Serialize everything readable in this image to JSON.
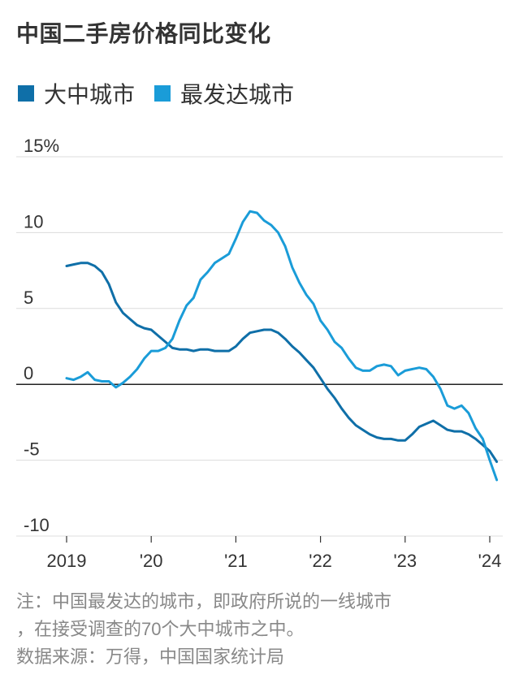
{
  "chart_data": {
    "type": "line",
    "title": "中国二手房价格同比变化",
    "ylim": [
      -10,
      15
    ],
    "y_ticks": [
      15,
      10,
      5,
      0,
      -5,
      -10
    ],
    "y_tick_labels": [
      "15%",
      "10",
      "5",
      "0",
      "-5",
      "-10"
    ],
    "x_ticks": [
      2019,
      2020,
      2021,
      2022,
      2023,
      2024
    ],
    "x_tick_labels": [
      "2019",
      "'20",
      "'21",
      "'22",
      "'23",
      "'24"
    ],
    "grid": true,
    "legend": "top-left",
    "series": [
      {
        "name": "大中城市",
        "color": "#0f6fa8",
        "x": [
          2019.0,
          2019.083,
          2019.167,
          2019.25,
          2019.333,
          2019.417,
          2019.5,
          2019.583,
          2019.667,
          2019.75,
          2019.833,
          2019.917,
          2020.0,
          2020.083,
          2020.167,
          2020.25,
          2020.333,
          2020.417,
          2020.5,
          2020.583,
          2020.667,
          2020.75,
          2020.833,
          2020.917,
          2021.0,
          2021.083,
          2021.167,
          2021.25,
          2021.333,
          2021.417,
          2021.5,
          2021.583,
          2021.667,
          2021.75,
          2021.833,
          2021.917,
          2022.0,
          2022.083,
          2022.167,
          2022.25,
          2022.333,
          2022.417,
          2022.5,
          2022.583,
          2022.667,
          2022.75,
          2022.833,
          2022.917,
          2023.0,
          2023.083,
          2023.167,
          2023.25,
          2023.333,
          2023.417,
          2023.5,
          2023.583,
          2023.667,
          2023.75,
          2023.833,
          2023.917,
          2024.0,
          2024.083
        ],
        "y": [
          7.8,
          7.9,
          8.0,
          8.0,
          7.8,
          7.4,
          6.6,
          5.4,
          4.7,
          4.3,
          3.9,
          3.7,
          3.6,
          3.2,
          2.8,
          2.4,
          2.3,
          2.3,
          2.2,
          2.3,
          2.3,
          2.2,
          2.2,
          2.2,
          2.5,
          3.0,
          3.4,
          3.5,
          3.6,
          3.6,
          3.4,
          3.0,
          2.5,
          2.1,
          1.6,
          1.1,
          0.4,
          -0.3,
          -0.9,
          -1.6,
          -2.2,
          -2.7,
          -3.0,
          -3.3,
          -3.5,
          -3.6,
          -3.6,
          -3.7,
          -3.7,
          -3.3,
          -2.8,
          -2.6,
          -2.4,
          -2.7,
          -3.0,
          -3.1,
          -3.1,
          -3.3,
          -3.6,
          -4.0,
          -4.4,
          -5.1
        ]
      },
      {
        "name": "最发达城市",
        "color": "#1a9cd8",
        "x": [
          2019.0,
          2019.083,
          2019.167,
          2019.25,
          2019.333,
          2019.417,
          2019.5,
          2019.583,
          2019.667,
          2019.75,
          2019.833,
          2019.917,
          2020.0,
          2020.083,
          2020.167,
          2020.25,
          2020.333,
          2020.417,
          2020.5,
          2020.583,
          2020.667,
          2020.75,
          2020.833,
          2020.917,
          2021.0,
          2021.083,
          2021.167,
          2021.25,
          2021.333,
          2021.417,
          2021.5,
          2021.583,
          2021.667,
          2021.75,
          2021.833,
          2021.917,
          2022.0,
          2022.083,
          2022.167,
          2022.25,
          2022.333,
          2022.417,
          2022.5,
          2022.583,
          2022.667,
          2022.75,
          2022.833,
          2022.917,
          2023.0,
          2023.083,
          2023.167,
          2023.25,
          2023.333,
          2023.417,
          2023.5,
          2023.583,
          2023.667,
          2023.75,
          2023.833,
          2023.917,
          2024.0,
          2024.083
        ],
        "y": [
          0.4,
          0.3,
          0.5,
          0.8,
          0.3,
          0.2,
          0.2,
          -0.2,
          0.1,
          0.5,
          1.0,
          1.7,
          2.2,
          2.2,
          2.4,
          3.0,
          4.2,
          5.2,
          5.7,
          6.9,
          7.4,
          8.0,
          8.3,
          8.6,
          9.6,
          10.7,
          11.4,
          11.3,
          10.8,
          10.5,
          10.0,
          9.1,
          7.7,
          6.7,
          5.9,
          5.3,
          4.2,
          3.6,
          2.8,
          2.4,
          1.7,
          1.1,
          0.9,
          0.9,
          1.2,
          1.3,
          1.2,
          0.6,
          0.9,
          1.0,
          1.1,
          1.0,
          0.5,
          -0.3,
          -1.4,
          -1.6,
          -1.4,
          -1.9,
          -2.9,
          -3.6,
          -5.0,
          -6.3
        ]
      }
    ]
  },
  "notes": {
    "line1": "注：中国最发达的城市，即政府所说的一线城市",
    "line2": "，在接受调查的70个大中城市之中。",
    "source": "数据来源：万得，中国国家统计局"
  }
}
